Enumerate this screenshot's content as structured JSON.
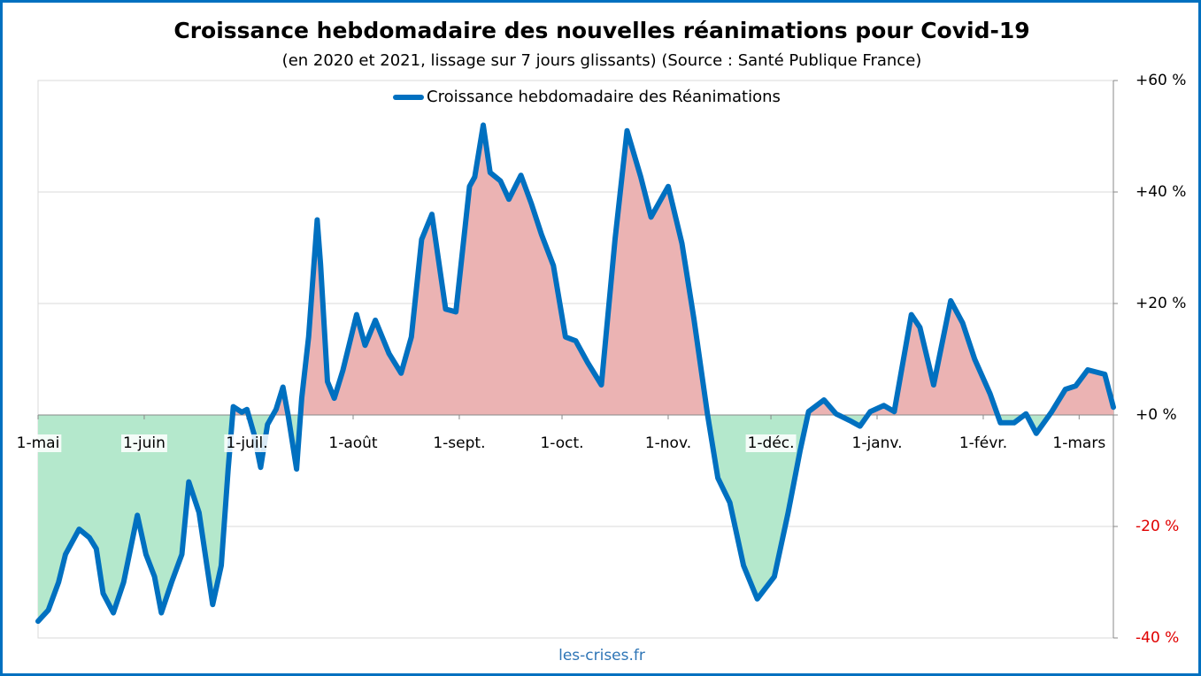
{
  "chart_data": {
    "type": "line",
    "title": "Croissance hebdomadaire des nouvelles réanimations pour Covid-19",
    "subtitle": "(en 2020 et 2021, lissage sur 7 jours glissants) (Source : Santé Publique France)",
    "source": "les-crises.fr",
    "x": [
      0,
      3,
      6,
      8,
      12,
      15,
      17,
      19,
      22,
      25,
      29,
      31.5,
      34,
      36,
      39,
      42,
      44,
      47,
      51,
      53.5,
      55.5,
      57,
      59.5,
      61,
      63,
      65,
      67,
      69.5,
      71.5,
      73,
      75.5,
      77,
      79,
      81.5,
      82.5,
      84.5,
      86.5,
      89,
      93,
      95.5,
      98.5,
      102.5,
      106,
      109,
      112,
      115,
      119,
      122,
      126,
      127.5,
      130,
      132,
      135,
      137.5,
      141,
      144,
      147,
      150.5,
      154,
      157,
      160.5,
      164.5,
      168.5,
      172,
      176,
      179,
      184,
      188,
      191.5,
      195.5,
      198.5,
      202,
      206,
      210,
      215,
      219,
      222.5,
      225,
      229.5,
      233,
      237,
      240,
      243,
      247,
      250,
      255,
      257.5,
      261.5,
      266.5,
      270,
      273.5,
      278,
      281,
      285,
      288.5,
      291.5,
      296,
      300,
      303,
      306.5,
      311.5,
      314
    ],
    "series": [
      {
        "name": "Croissance hebdomadaire des Réanimations",
        "color": "#0070c0",
        "values": [
          -37,
          -35,
          -30,
          -25,
          -20.5,
          -22,
          -24,
          -32,
          -35.5,
          -30,
          -18,
          -25,
          -29,
          -35.5,
          -30,
          -25,
          -12,
          -17.5,
          -34,
          -27,
          -9.7,
          1.5,
          0.5,
          1,
          -3.3,
          -9.4,
          -1.7,
          1,
          5,
          0,
          -9.7,
          3,
          14,
          35,
          27,
          6,
          3,
          8,
          18,
          12.5,
          17,
          11,
          7.5,
          14,
          31.5,
          36,
          19,
          18.5,
          41,
          42.7,
          52,
          43.5,
          42,
          38.7,
          43,
          38,
          32.4,
          26.8,
          14,
          13.3,
          9.4,
          5.4,
          31.6,
          51,
          42.7,
          35.5,
          41,
          30.8,
          17.3,
          0,
          -11.3,
          -15.7,
          -27,
          -33,
          -29,
          -17.6,
          -6.5,
          0.6,
          2.7,
          0.2,
          -1,
          -2,
          0.6,
          1.7,
          0.6,
          18,
          15.7,
          5.4,
          20.5,
          16.5,
          10,
          3.8,
          -1.4,
          -1.4,
          0.2,
          -3.3,
          0.6,
          4.6,
          5.2,
          8.1,
          7.3,
          1.4
        ]
      }
    ],
    "positive_fill": "#ebb3b3",
    "negative_fill": "#b4e8cc",
    "negative_tick_color": "#e00000",
    "xlim": [
      0,
      314
    ],
    "xticks": [
      {
        "value": 0,
        "label": "1-mai"
      },
      {
        "value": 31,
        "label": "1-juin"
      },
      {
        "value": 61,
        "label": "1-juil."
      },
      {
        "value": 92,
        "label": "1-août"
      },
      {
        "value": 123,
        "label": "1-sept."
      },
      {
        "value": 153,
        "label": "1-oct."
      },
      {
        "value": 184,
        "label": "1-nov."
      },
      {
        "value": 214,
        "label": "1-déc."
      },
      {
        "value": 245,
        "label": "1-janv."
      },
      {
        "value": 276,
        "label": "1-févr."
      },
      {
        "value": 304,
        "label": "1-mars"
      }
    ],
    "ylim": [
      -40,
      60
    ],
    "yticks": [
      {
        "value": 60,
        "label": "+60 %"
      },
      {
        "value": 40,
        "label": "+40 %"
      },
      {
        "value": 20,
        "label": "+20 %"
      },
      {
        "value": 0,
        "label": "+0 %"
      },
      {
        "value": -20,
        "label": "-20 %"
      },
      {
        "value": -40,
        "label": "-40 %"
      }
    ],
    "grid": true,
    "legend": "top"
  }
}
